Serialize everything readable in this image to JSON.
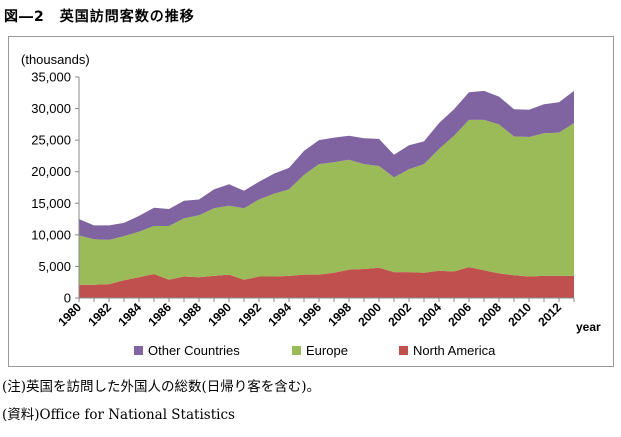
{
  "figure": {
    "caption": "図―2　英国訪問客数の推移",
    "note_1": "(注)英国を訪問した外国人の総数(日帰り客を含む)。",
    "note_2": "(資料)Office for National Statistics"
  },
  "chart_data": {
    "type": "area",
    "stacked": true,
    "unit_label": "(thousands)",
    "xlabel": "year",
    "ylim": [
      0,
      35000
    ],
    "yticks": [
      0,
      5000,
      10000,
      15000,
      20000,
      25000,
      30000,
      35000
    ],
    "ytick_labels": [
      "0",
      "5,000",
      "10,000",
      "15,000",
      "20,000",
      "25,000",
      "30,000",
      "35,000"
    ],
    "x": [
      1980,
      1981,
      1982,
      1983,
      1984,
      1985,
      1986,
      1987,
      1988,
      1989,
      1990,
      1991,
      1992,
      1993,
      1994,
      1995,
      1996,
      1997,
      1998,
      1999,
      2000,
      2001,
      2002,
      2003,
      2004,
      2005,
      2006,
      2007,
      2008,
      2009,
      2010,
      2011,
      2012,
      2013
    ],
    "xtick_labels": [
      "1980",
      "1982",
      "1984",
      "1986",
      "1988",
      "1990",
      "1992",
      "1994",
      "1996",
      "1998",
      "2000",
      "2002",
      "2004",
      "2006",
      "2008",
      "2010",
      "2012"
    ],
    "series": [
      {
        "name": "North America",
        "color": "#c0504d",
        "values": [
          2100,
          2100,
          2200,
          2800,
          3300,
          3800,
          2900,
          3400,
          3300,
          3500,
          3700,
          2900,
          3400,
          3400,
          3500,
          3700,
          3700,
          4000,
          4500,
          4600,
          4800,
          4100,
          4100,
          4000,
          4300,
          4200,
          4900,
          4400,
          3900,
          3600,
          3400,
          3500,
          3500,
          3500
        ]
      },
      {
        "name": "Europe",
        "color": "#9bbb59",
        "values": [
          7800,
          7200,
          7000,
          7000,
          7200,
          7600,
          8500,
          9200,
          9800,
          10700,
          10900,
          11300,
          12200,
          13100,
          13700,
          15800,
          17500,
          17500,
          17400,
          16600,
          16100,
          15000,
          16300,
          17200,
          19300,
          21500,
          23300,
          23800,
          23600,
          22000,
          22100,
          22600,
          22700,
          24200
        ]
      },
      {
        "name": "Other Countries",
        "color": "#8064a2",
        "values": [
          2600,
          2200,
          2300,
          2100,
          2500,
          2900,
          2700,
          2800,
          2500,
          3000,
          3400,
          2800,
          2800,
          3200,
          3400,
          3800,
          3800,
          3900,
          3800,
          4100,
          4300,
          3600,
          3800,
          3600,
          4100,
          4200,
          4400,
          4600,
          4400,
          4300,
          4300,
          4600,
          4800,
          5100
        ]
      }
    ],
    "legend": {
      "position": "bottom",
      "entries": [
        "Other Countries",
        "Europe",
        "North America"
      ]
    },
    "grid": false
  }
}
